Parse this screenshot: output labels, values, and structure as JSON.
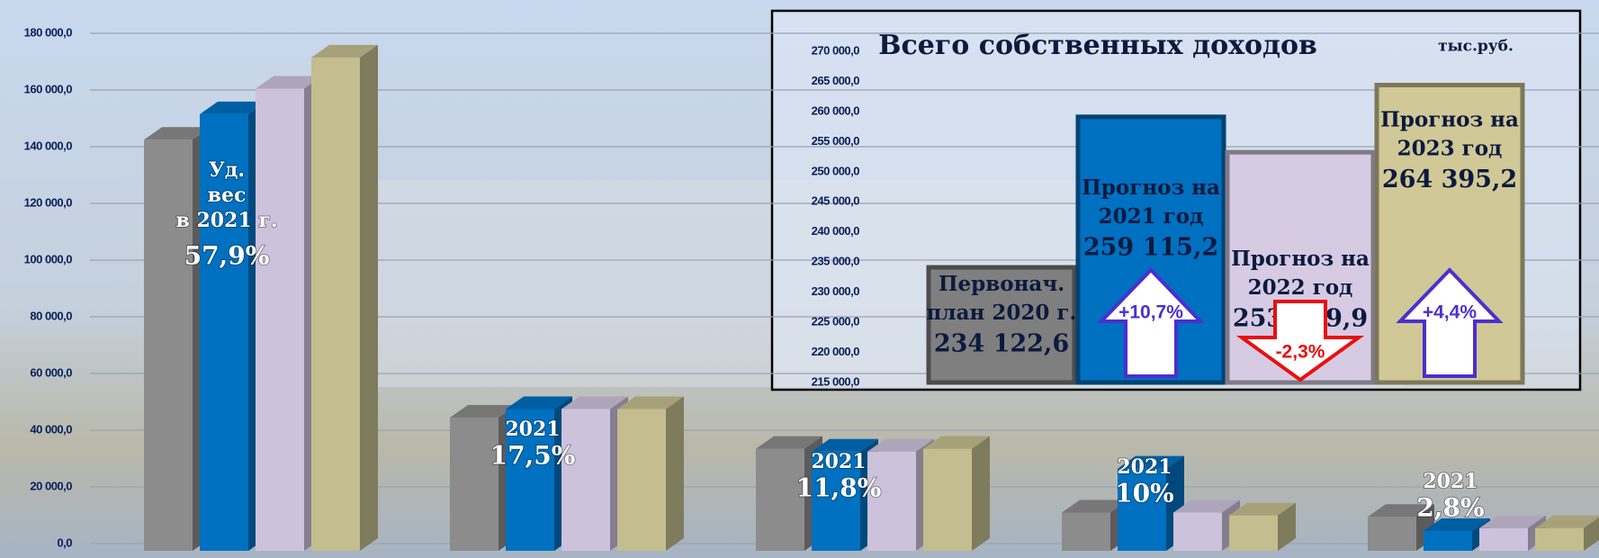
{
  "chart_data": [
    {
      "type": "bar3d",
      "categories": [
        null,
        null,
        null,
        null,
        null
      ],
      "series": [
        {
          "color": "#8c8c8c",
          "values": [
            145000,
            47000,
            36000,
            13500,
            12000
          ]
        },
        {
          "color": "#0070c0",
          "values": [
            154000,
            50000,
            35000,
            29000,
            7000
          ]
        },
        {
          "color": "#cdc2dc",
          "values": [
            163000,
            50000,
            35000,
            13500,
            8000
          ]
        },
        {
          "color": "#c4bd8f",
          "values": [
            174000,
            50000,
            36000,
            12500,
            8000
          ]
        }
      ],
      "annotations": [
        {
          "lines": [
            "Уд.",
            "вес",
            "в 2021 г."
          ],
          "share": "57,9%"
        },
        {
          "lines": [
            "2021"
          ],
          "share": "17,5%"
        },
        {
          "lines": [
            "2021"
          ],
          "share": "11,8%"
        },
        {
          "lines": [
            "2021"
          ],
          "share": "10%"
        },
        {
          "lines": [
            "2021"
          ],
          "share": "2,8%"
        }
      ],
      "ylim": [
        0,
        180000
      ],
      "yticks": [
        {
          "value": 0,
          "label": "0,0"
        },
        {
          "value": 20000,
          "label": "20 000,0"
        },
        {
          "value": 40000,
          "label": "40 000,0"
        },
        {
          "value": 60000,
          "label": "60 000,0"
        },
        {
          "value": 80000,
          "label": "80 000,0"
        },
        {
          "value": 100000,
          "label": "100 000,0"
        },
        {
          "value": 120000,
          "label": "120 000,0"
        },
        {
          "value": 140000,
          "label": "140 000,0"
        },
        {
          "value": 160000,
          "label": "160 000,0"
        },
        {
          "value": 180000,
          "label": "180 000,0"
        }
      ],
      "grid": true
    },
    {
      "type": "bar",
      "title": "Всего собственных доходов",
      "unit": "тыс.руб.",
      "categories": [
        [
          "Первонач.",
          "план 2020 г."
        ],
        [
          "Прогноз на",
          "2021 год"
        ],
        [
          "Прогноз на",
          "2022 год"
        ],
        [
          "Прогноз на",
          "2023 год"
        ]
      ],
      "values": [
        234122.6,
        259115.2,
        253239.9,
        264395.2
      ],
      "value_labels": [
        "234 122,6",
        "259 115,2",
        "253 239,9",
        "264 395,2"
      ],
      "colors": [
        "#7f7f7f",
        "#0070c0",
        "#d6cbe3",
        "#d0c896"
      ],
      "changes": [
        null,
        "+10,7%",
        "-2,3%",
        "+4,4%"
      ],
      "ylim": [
        215000,
        270000
      ],
      "yticks": [
        {
          "value": 215000,
          "label": "215 000,0"
        },
        {
          "value": 220000,
          "label": "220 000,0"
        },
        {
          "value": 225000,
          "label": "225 000,0"
        },
        {
          "value": 230000,
          "label": "230 000,0"
        },
        {
          "value": 235000,
          "label": "235 000,0"
        },
        {
          "value": 240000,
          "label": "240 000,0"
        },
        {
          "value": 245000,
          "label": "245 000,0"
        },
        {
          "value": 250000,
          "label": "250 000,0"
        },
        {
          "value": 255000,
          "label": "255 000,0"
        },
        {
          "value": 260000,
          "label": "260 000,0"
        },
        {
          "value": 265000,
          "label": "265 000,0"
        },
        {
          "value": 270000,
          "label": "270 000,0"
        }
      ]
    }
  ]
}
